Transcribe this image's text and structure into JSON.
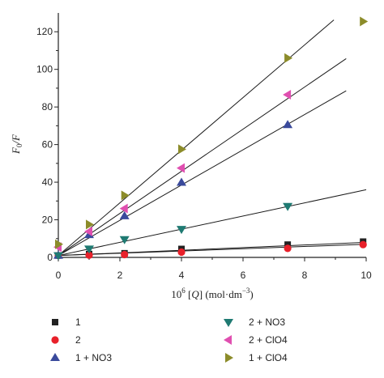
{
  "chart_data": {
    "type": "scatter",
    "title": "",
    "xlabel": "10^6 [Q] (mol·dm^−3)",
    "ylabel": "F0/F",
    "xlim": [
      0,
      10
    ],
    "ylim": [
      0,
      130
    ],
    "xticks": [
      0,
      2,
      4,
      6,
      8,
      10
    ],
    "yticks": [
      0,
      20,
      40,
      60,
      80,
      100,
      120
    ],
    "grid": false,
    "legend_position": "bottom",
    "series": [
      {
        "name": "1",
        "marker": "square",
        "color": "#222222",
        "x": [
          0,
          1,
          2.15,
          4,
          7.45,
          9.9
        ],
        "y": [
          1.0,
          1.8,
          2.2,
          4.5,
          6.8,
          8.4
        ],
        "fit": {
          "intercept": 1.0,
          "slope": 0.7,
          "x_end": 10
        }
      },
      {
        "name": "2",
        "marker": "circle",
        "color": "#e8202a",
        "x": [
          0,
          1,
          2.15,
          4,
          7.45,
          9.9
        ],
        "y": [
          1.0,
          1.2,
          1.5,
          2.8,
          4.8,
          6.8
        ],
        "fit": {
          "intercept": 1.0,
          "slope": 0.6,
          "x_end": 10
        }
      },
      {
        "name": "1 + NO3",
        "marker": "triangle-up",
        "color": "#3a4a9c",
        "x": [
          0,
          1,
          2.15,
          4,
          7.45
        ],
        "y": [
          1.0,
          12.0,
          22.0,
          39.8,
          70.5
        ],
        "fit": {
          "intercept": 1.0,
          "slope": 9.37,
          "x_end": 9.35
        }
      },
      {
        "name": "2 + NO3",
        "marker": "triangle-down",
        "color": "#1f7a72",
        "x": [
          0,
          1,
          2.15,
          4,
          7.45
        ],
        "y": [
          1.0,
          4.6,
          9.6,
          15.0,
          27.2
        ],
        "fit": {
          "intercept": 1.0,
          "slope": 3.5,
          "x_end": 10
        }
      },
      {
        "name": "2 + ClO4",
        "marker": "triangle-left",
        "color": "#e04fb0",
        "x": [
          0,
          1,
          2.15,
          4,
          7.45
        ],
        "y": [
          5.5,
          13.8,
          26.0,
          47.5,
          86.5
        ],
        "fit": {
          "intercept": 1.0,
          "slope": 11.2,
          "x_end": 9.35
        }
      },
      {
        "name": "1 + ClO4",
        "marker": "triangle-right",
        "color": "#8c8c2a",
        "x": [
          0,
          1,
          2.15,
          4,
          7.45,
          9.9
        ],
        "y": [
          7.0,
          17.5,
          33.0,
          57.5,
          106.0,
          125.5
        ],
        "fit": {
          "intercept": 1.0,
          "slope": 14.0,
          "x_end": 8.95
        }
      }
    ]
  }
}
